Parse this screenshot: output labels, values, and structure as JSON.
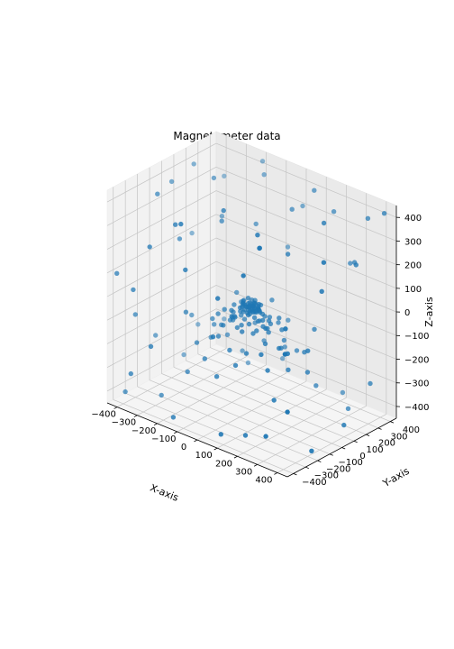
{
  "chart_data": {
    "type": "scatter",
    "projection": "3d",
    "title": "Magnetometer data",
    "xlabel": "X-axis",
    "ylabel": "Y-axis",
    "zlabel": "Z-axis",
    "xlim": [
      -450,
      450
    ],
    "ylim": [
      -450,
      450
    ],
    "zlim": [
      -450,
      450
    ],
    "xticks": [
      -400,
      -300,
      -200,
      -100,
      0,
      100,
      200,
      300,
      400
    ],
    "yticks": [
      -400,
      -300,
      -200,
      -100,
      0,
      100,
      200,
      300,
      400
    ],
    "zticks": [
      -400,
      -300,
      -200,
      -100,
      0,
      100,
      200,
      300,
      400
    ],
    "grid": true,
    "legend": false,
    "marker_color": "#1f77b4",
    "series": [
      {
        "points": [
          [
            -40,
            -30,
            -20
          ],
          [
            -25,
            -40,
            -10
          ],
          [
            -10,
            -20,
            -35
          ],
          [
            5,
            -35,
            -15
          ],
          [
            20,
            -25,
            -5
          ],
          [
            -30,
            -10,
            -30
          ],
          [
            -15,
            -5,
            -15
          ],
          [
            0,
            -15,
            -25
          ],
          [
            15,
            -5,
            -10
          ],
          [
            30,
            -15,
            -20
          ],
          [
            -35,
            10,
            -25
          ],
          [
            -20,
            5,
            -5
          ],
          [
            -5,
            15,
            -15
          ],
          [
            10,
            10,
            -30
          ],
          [
            25,
            0,
            -20
          ],
          [
            -25,
            25,
            -10
          ],
          [
            -10,
            30,
            -20
          ],
          [
            5,
            25,
            -5
          ],
          [
            20,
            20,
            -15
          ],
          [
            35,
            10,
            -25
          ],
          [
            -40,
            -5,
            0
          ],
          [
            -20,
            -35,
            5
          ],
          [
            0,
            -40,
            0
          ],
          [
            25,
            -30,
            10
          ],
          [
            -30,
            20,
            10
          ],
          [
            -5,
            35,
            5
          ],
          [
            15,
            35,
            -5
          ],
          [
            30,
            25,
            0
          ],
          [
            40,
            -5,
            -10
          ],
          [
            -45,
            -20,
            -40
          ],
          [
            -15,
            -45,
            -25
          ],
          [
            10,
            -45,
            -30
          ],
          [
            35,
            -35,
            -35
          ],
          [
            45,
            15,
            -30
          ],
          [
            5,
            45,
            -30
          ],
          [
            -35,
            35,
            -35
          ],
          [
            -50,
            10,
            -15
          ],
          [
            50,
            -20,
            -5
          ],
          [
            -10,
            0,
            -45
          ],
          [
            15,
            0,
            10
          ],
          [
            -25,
            -25,
            15
          ],
          [
            20,
            -15,
            15
          ],
          [
            0,
            0,
            0
          ],
          [
            -5,
            -10,
            -5
          ],
          [
            8,
            5,
            -12
          ],
          [
            -18,
            12,
            -22
          ],
          [
            12,
            -8,
            -28
          ],
          [
            -28,
            -12,
            -8
          ],
          [
            28,
            8,
            -2
          ],
          [
            -8,
            20,
            -38
          ],
          [
            -60,
            -60,
            -60
          ],
          [
            -70,
            -40,
            -80
          ],
          [
            -55,
            -75,
            -50
          ],
          [
            -80,
            -20,
            -55
          ],
          [
            -65,
            20,
            -75
          ],
          [
            -75,
            50,
            -45
          ],
          [
            -45,
            70,
            -60
          ],
          [
            -20,
            80,
            -50
          ],
          [
            20,
            75,
            -65
          ],
          [
            50,
            65,
            -55
          ],
          [
            70,
            40,
            -70
          ],
          [
            80,
            10,
            -45
          ],
          [
            75,
            -30,
            -60
          ],
          [
            60,
            -60,
            -75
          ],
          [
            35,
            -80,
            -50
          ],
          [
            0,
            -85,
            -65
          ],
          [
            -35,
            -80,
            -45
          ],
          [
            -85,
            -5,
            -30
          ],
          [
            -50,
            -85,
            -20
          ],
          [
            85,
            -50,
            -25
          ],
          [
            -90,
            -30,
            -90
          ],
          [
            -60,
            40,
            -95
          ],
          [
            -30,
            -70,
            -90
          ],
          [
            60,
            30,
            -90
          ],
          [
            90,
            -10,
            -85
          ],
          [
            40,
            -55,
            -95
          ],
          [
            -5,
            60,
            -90
          ],
          [
            -100,
            -60,
            -40
          ],
          [
            100,
            60,
            -40
          ],
          [
            -60,
            100,
            -30
          ],
          [
            -120,
            -80,
            -60
          ],
          [
            -110,
            40,
            -100
          ],
          [
            -70,
            -120,
            -80
          ],
          [
            110,
            -70,
            -110
          ],
          [
            120,
            50,
            -80
          ],
          [
            60,
            120,
            -90
          ],
          [
            -40,
            130,
            -120
          ],
          [
            30,
            -130,
            -70
          ],
          [
            -140,
            -20,
            -130
          ],
          [
            140,
            10,
            -140
          ],
          [
            -130,
            90,
            -20
          ],
          [
            130,
            -100,
            -30
          ],
          [
            -100,
            -110,
            -140
          ],
          [
            95,
            110,
            -150
          ],
          [
            -20,
            -150,
            -160
          ],
          [
            10,
            150,
            -20
          ],
          [
            -160,
            -60,
            -100
          ],
          [
            160,
            -40,
            -120
          ],
          [
            -80,
            160,
            -150
          ],
          [
            70,
            -160,
            -140
          ],
          [
            -190,
            -140,
            -190
          ],
          [
            -170,
            80,
            -210
          ],
          [
            170,
            -150,
            -180
          ],
          [
            190,
            120,
            -170
          ],
          [
            -120,
            -190,
            -220
          ],
          [
            110,
            190,
            -210
          ],
          [
            -200,
            20,
            -160
          ],
          [
            200,
            -30,
            -200
          ],
          [
            -60,
            200,
            -230
          ],
          [
            40,
            -200,
            -190
          ],
          [
            -220,
            -180,
            -60
          ],
          [
            210,
            170,
            -80
          ],
          [
            -180,
            210,
            -110
          ],
          [
            180,
            -220,
            -90
          ],
          [
            -240,
            60,
            -240
          ],
          [
            230,
            80,
            -230
          ],
          [
            -30,
            -240,
            -250
          ],
          [
            20,
            240,
            -240
          ],
          [
            -420,
            -350,
            -420
          ],
          [
            -350,
            -420,
            -300
          ],
          [
            -400,
            100,
            -380
          ],
          [
            -300,
            -250,
            -420
          ],
          [
            -150,
            -400,
            -420
          ],
          [
            100,
            -420,
            -400
          ],
          [
            300,
            -380,
            -350
          ],
          [
            420,
            -200,
            -420
          ],
          [
            400,
            100,
            -400
          ],
          [
            380,
            350,
            -300
          ],
          [
            200,
            420,
            -420
          ],
          [
            -100,
            420,
            -380
          ],
          [
            -350,
            350,
            -280
          ],
          [
            -420,
            -100,
            -250
          ],
          [
            -250,
            -420,
            -150
          ],
          [
            420,
            -400,
            -200
          ],
          [
            300,
            300,
            -420
          ],
          [
            -200,
            300,
            -400
          ],
          [
            150,
            -300,
            -420
          ],
          [
            -420,
            250,
            -300
          ],
          [
            -400,
            -300,
            -100
          ],
          [
            -350,
            -400,
            50
          ],
          [
            -300,
            -100,
            200
          ],
          [
            -420,
            200,
            100
          ],
          [
            -380,
            400,
            300
          ],
          [
            -200,
            -300,
            350
          ],
          [
            -100,
            -420,
            420
          ],
          [
            -250,
            100,
            420
          ],
          [
            -150,
            350,
            400
          ],
          [
            -400,
            0,
            380
          ],
          [
            200,
            -400,
            300
          ],
          [
            350,
            -300,
            100
          ],
          [
            420,
            -100,
            350
          ],
          [
            300,
            -200,
            -50
          ],
          [
            400,
            200,
            250
          ],
          [
            250,
            400,
            150
          ],
          [
            100,
            350,
            420
          ],
          [
            0,
            420,
            300
          ],
          [
            350,
            380,
            380
          ],
          [
            420,
            400,
            420
          ],
          [
            150,
            -200,
            400
          ],
          [
            -50,
            -150,
            420
          ],
          [
            50,
            250,
            350
          ],
          [
            -300,
            250,
            200
          ],
          [
            -420,
            -420,
            100
          ],
          [
            420,
            -420,
            50
          ],
          [
            -200,
            420,
            420
          ],
          [
            300,
            100,
            420
          ],
          [
            -100,
            200,
            250
          ],
          [
            100,
            -100,
            300
          ],
          [
            -350,
            -200,
            400
          ],
          [
            250,
            -350,
            420
          ],
          [
            -120,
            -350,
            200
          ],
          [
            380,
            -50,
            200
          ],
          [
            320,
            320,
            200
          ],
          [
            -280,
            -380,
            250
          ],
          [
            -380,
            150,
            420
          ],
          [
            180,
            380,
            350
          ],
          [
            -50,
            380,
            120
          ],
          [
            60,
            -380,
            150
          ],
          [
            -300,
            0,
            -150
          ],
          [
            280,
            0,
            -100
          ],
          [
            0,
            -320,
            -50
          ],
          [
            0,
            300,
            -150
          ],
          [
            -200,
            -200,
            -300
          ],
          [
            220,
            -180,
            -280
          ],
          [
            -180,
            220,
            -320
          ],
          [
            200,
            200,
            -330
          ],
          [
            -150,
            0,
            300
          ],
          [
            150,
            50,
            250
          ]
        ]
      }
    ]
  }
}
